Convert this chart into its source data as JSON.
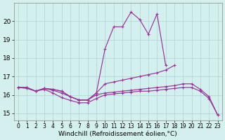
{
  "xlabel": "Windchill (Refroidissement éolien,°C)",
  "background_color": "#d4f0ee",
  "line_color": "#993399",
  "grid_color": "#b0d4d0",
  "hours": [
    0,
    1,
    2,
    3,
    4,
    5,
    6,
    7,
    8,
    9,
    10,
    11,
    12,
    13,
    14,
    15,
    16,
    17,
    18,
    19,
    20,
    21,
    22,
    23
  ],
  "line1": [
    16.4,
    16.4,
    16.2,
    16.35,
    16.3,
    16.2,
    15.9,
    15.72,
    15.72,
    16.1,
    18.5,
    19.7,
    19.7,
    20.5,
    20.1,
    19.3,
    20.4,
    17.6,
    null,
    null,
    null,
    null,
    null,
    null
  ],
  "line2": [
    16.4,
    16.4,
    16.2,
    16.35,
    16.3,
    16.2,
    15.9,
    15.72,
    15.72,
    16.1,
    16.6,
    16.7,
    16.8,
    16.9,
    17.0,
    17.1,
    17.2,
    17.35,
    17.6,
    null,
    null,
    null,
    null,
    null
  ],
  "line3": [
    16.4,
    16.4,
    16.2,
    16.35,
    16.25,
    16.1,
    15.9,
    15.72,
    15.72,
    16.0,
    16.1,
    16.15,
    16.2,
    16.25,
    16.3,
    16.35,
    16.4,
    16.45,
    16.5,
    16.6,
    16.6,
    16.3,
    15.9,
    14.9
  ],
  "line4": [
    16.4,
    16.35,
    16.2,
    16.3,
    16.1,
    15.85,
    15.7,
    15.57,
    15.57,
    15.8,
    16.0,
    16.05,
    16.1,
    16.15,
    16.2,
    16.2,
    16.25,
    16.3,
    16.35,
    16.4,
    16.4,
    16.2,
    15.8,
    14.9
  ],
  "ylim": [
    14.6,
    21.0
  ],
  "yticks": [
    15,
    16,
    17,
    18,
    19,
    20
  ],
  "xtick_fontsize": 5.5,
  "ytick_fontsize": 6.5,
  "xlabel_fontsize": 6.5
}
